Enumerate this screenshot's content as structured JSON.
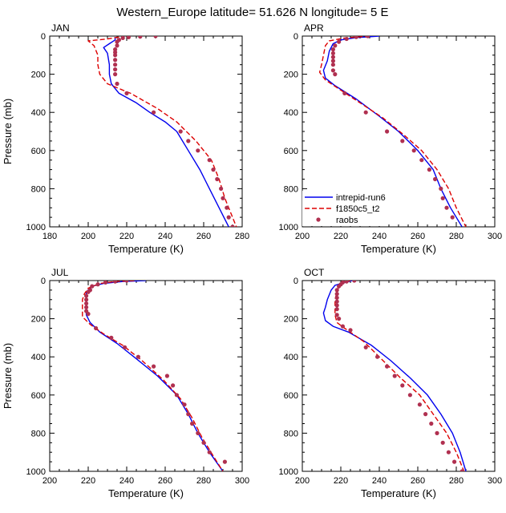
{
  "title": "Western_Europe  latitude= 51.626 N longitude= 5 E",
  "legend": {
    "entries": [
      {
        "name": "intrepid-run6",
        "color": "#0000ee",
        "style": "solid"
      },
      {
        "name": "f1850c5_t2",
        "color": "#dd0000",
        "style": "dashed"
      },
      {
        "name": "raobs",
        "color": "#b03050",
        "style": "dots"
      }
    ]
  },
  "chart_data": [
    {
      "type": "line",
      "panel": "JAN",
      "xlabel": "Temperature (K)",
      "ylabel": "Pressure (mb)",
      "xlim": [
        180,
        280
      ],
      "ylim": [
        1000,
        0
      ],
      "y_inverted": true,
      "xticks": [
        180,
        200,
        220,
        240,
        260,
        280
      ],
      "yticks": [
        0,
        200,
        400,
        600,
        800,
        1000
      ],
      "series": [
        {
          "name": "intrepid-run6",
          "points": [
            [
              214,
              5
            ],
            [
              214,
              20
            ],
            [
              211,
              40
            ],
            [
              208,
              60
            ],
            [
              210,
              90
            ],
            [
              211,
              150
            ],
            [
              211,
              200
            ],
            [
              212,
              250
            ],
            [
              216,
              300
            ],
            [
              225,
              350
            ],
            [
              232,
              400
            ],
            [
              240,
              450
            ],
            [
              246,
              500
            ],
            [
              252,
              600
            ],
            [
              258,
              700
            ],
            [
              263,
              800
            ],
            [
              268,
              900
            ],
            [
              273,
              1000
            ]
          ]
        },
        {
          "name": "f1850c5_t2",
          "points": [
            [
              216,
              5
            ],
            [
              210,
              15
            ],
            [
              200,
              25
            ],
            [
              203,
              50
            ],
            [
              205,
              100
            ],
            [
              205,
              150
            ],
            [
              206,
              200
            ],
            [
              210,
              250
            ],
            [
              222,
              300
            ],
            [
              236,
              380
            ],
            [
              246,
              450
            ],
            [
              256,
              550
            ],
            [
              264,
              650
            ],
            [
              268,
              750
            ],
            [
              271,
              850
            ],
            [
              275,
              950
            ],
            [
              277,
              1000
            ]
          ]
        },
        {
          "name": "raobs",
          "points": [
            [
              235,
              0
            ],
            [
              227,
              3
            ],
            [
              221,
              6
            ],
            [
              218,
              10
            ],
            [
              216,
              20
            ],
            [
              215,
              30
            ],
            [
              215,
              50
            ],
            [
              214,
              70
            ],
            [
              214,
              85
            ],
            [
              214,
              100
            ],
            [
              214,
              125
            ],
            [
              214,
              150
            ],
            [
              214,
              175
            ],
            [
              214,
              200
            ],
            [
              215,
              250
            ],
            [
              220,
              300
            ],
            [
              234,
              400
            ],
            [
              248,
              500
            ],
            [
              252,
              550
            ],
            [
              257,
              600
            ],
            [
              263,
              650
            ],
            [
              265,
              700
            ],
            [
              267,
              750
            ],
            [
              269,
              800
            ],
            [
              270,
              850
            ],
            [
              272,
              900
            ],
            [
              273,
              950
            ],
            [
              275,
              1000
            ]
          ]
        }
      ]
    },
    {
      "type": "line",
      "panel": "APR",
      "xlabel": "Temperature (K)",
      "ylabel": "",
      "xlim": [
        200,
        300
      ],
      "ylim": [
        1000,
        0
      ],
      "y_inverted": true,
      "xticks": [
        200,
        220,
        240,
        260,
        280,
        300
      ],
      "yticks": [
        0,
        200,
        400,
        600,
        800,
        1000
      ],
      "series": [
        {
          "name": "intrepid-run6",
          "points": [
            [
              240,
              0
            ],
            [
              228,
              8
            ],
            [
              220,
              20
            ],
            [
              216,
              40
            ],
            [
              214,
              80
            ],
            [
              213,
              130
            ],
            [
              211,
              180
            ],
            [
              212,
              220
            ],
            [
              217,
              260
            ],
            [
              228,
              330
            ],
            [
              240,
              420
            ],
            [
              250,
              500
            ],
            [
              260,
              600
            ],
            [
              268,
              700
            ],
            [
              272,
              800
            ],
            [
              277,
              900
            ],
            [
              283,
              1000
            ]
          ]
        },
        {
          "name": "f1850c5_t2",
          "points": [
            [
              235,
              0
            ],
            [
              222,
              10
            ],
            [
              214,
              25
            ],
            [
              212,
              50
            ],
            [
              211,
              100
            ],
            [
              210,
              150
            ],
            [
              209,
              190
            ],
            [
              212,
              230
            ],
            [
              218,
              270
            ],
            [
              230,
              350
            ],
            [
              242,
              430
            ],
            [
              253,
              520
            ],
            [
              262,
              600
            ],
            [
              270,
              700
            ],
            [
              276,
              800
            ],
            [
              280,
              900
            ],
            [
              285,
              1000
            ]
          ]
        },
        {
          "name": "raobs",
          "points": [
            [
              234,
              0
            ],
            [
              228,
              5
            ],
            [
              223,
              15
            ],
            [
              219,
              30
            ],
            [
              217,
              50
            ],
            [
              216,
              70
            ],
            [
              216,
              90
            ],
            [
              216,
              110
            ],
            [
              216,
              130
            ],
            [
              216,
              150
            ],
            [
              216,
              180
            ],
            [
              217,
              200
            ],
            [
              222,
              300
            ],
            [
              233,
              400
            ],
            [
              244,
              500
            ],
            [
              252,
              550
            ],
            [
              258,
              600
            ],
            [
              262,
              650
            ],
            [
              266,
              700
            ],
            [
              269,
              750
            ],
            [
              272,
              800
            ],
            [
              273,
              850
            ],
            [
              275,
              900
            ],
            [
              278,
              950
            ]
          ]
        }
      ]
    },
    {
      "type": "line",
      "panel": "JUL",
      "xlabel": "Temperature (K)",
      "ylabel": "Pressure (mb)",
      "xlim": [
        200,
        300
      ],
      "ylim": [
        1000,
        0
      ],
      "y_inverted": true,
      "xticks": [
        200,
        220,
        240,
        260,
        280,
        300
      ],
      "yticks": [
        0,
        200,
        400,
        600,
        800,
        1000
      ],
      "series": [
        {
          "name": "intrepid-run6",
          "points": [
            [
              250,
              0
            ],
            [
              238,
              5
            ],
            [
              228,
              15
            ],
            [
              222,
              30
            ],
            [
              219,
              60
            ],
            [
              219,
              100
            ],
            [
              219,
              140
            ],
            [
              219,
              180
            ],
            [
              221,
              220
            ],
            [
              226,
              270
            ],
            [
              235,
              330
            ],
            [
              245,
              410
            ],
            [
              256,
              500
            ],
            [
              266,
              600
            ],
            [
              272,
              700
            ],
            [
              277,
              800
            ],
            [
              283,
              900
            ],
            [
              290,
              1000
            ]
          ]
        },
        {
          "name": "f1850c5_t2",
          "points": [
            [
              244,
              0
            ],
            [
              234,
              5
            ],
            [
              226,
              15
            ],
            [
              220,
              40
            ],
            [
              218,
              70
            ],
            [
              217,
              100
            ],
            [
              217,
              140
            ],
            [
              217,
              190
            ],
            [
              221,
              230
            ],
            [
              228,
              280
            ],
            [
              238,
              340
            ],
            [
              248,
              420
            ],
            [
              259,
              520
            ],
            [
              268,
              620
            ],
            [
              274,
              720
            ],
            [
              279,
              820
            ],
            [
              285,
              920
            ],
            [
              290,
              1000
            ]
          ]
        },
        {
          "name": "raobs",
          "points": [
            [
              240,
              0
            ],
            [
              234,
              5
            ],
            [
              229,
              10
            ],
            [
              225,
              20
            ],
            [
              222,
              30
            ],
            [
              221,
              50
            ],
            [
              220,
              60
            ],
            [
              219,
              80
            ],
            [
              219,
              100
            ],
            [
              219,
              120
            ],
            [
              219,
              140
            ],
            [
              219,
              160
            ],
            [
              220,
              175
            ],
            [
              224,
              250
            ],
            [
              232,
              300
            ],
            [
              239,
              350
            ],
            [
              246,
              400
            ],
            [
              254,
              450
            ],
            [
              261,
              500
            ],
            [
              264,
              550
            ],
            [
              266,
              600
            ],
            [
              270,
              650
            ],
            [
              272,
              700
            ],
            [
              274,
              750
            ],
            [
              277,
              800
            ],
            [
              280,
              850
            ],
            [
              283,
              900
            ],
            [
              291,
              950
            ]
          ]
        }
      ]
    },
    {
      "type": "line",
      "panel": "OCT",
      "xlabel": "Temperature (K)",
      "ylabel": "",
      "xlim": [
        200,
        300
      ],
      "ylim": [
        1000,
        0
      ],
      "y_inverted": true,
      "xticks": [
        200,
        220,
        240,
        260,
        280,
        300
      ],
      "yticks": [
        0,
        200,
        400,
        600,
        800,
        1000
      ],
      "series": [
        {
          "name": "intrepid-run6",
          "points": [
            [
              226,
              0
            ],
            [
              222,
              10
            ],
            [
              217,
              25
            ],
            [
              215,
              50
            ],
            [
              213,
              100
            ],
            [
              212,
              140
            ],
            [
              211,
              170
            ],
            [
              212,
              210
            ],
            [
              216,
              240
            ],
            [
              224,
              270
            ],
            [
              236,
              340
            ],
            [
              246,
              420
            ],
            [
              256,
              510
            ],
            [
              265,
              600
            ],
            [
              272,
              700
            ],
            [
              278,
              800
            ],
            [
              282,
              900
            ],
            [
              285,
              1000
            ]
          ]
        },
        {
          "name": "f1850c5_t2",
          "points": [
            [
              225,
              0
            ],
            [
              221,
              10
            ],
            [
              219,
              30
            ],
            [
              218,
              60
            ],
            [
              217,
              100
            ],
            [
              217,
              140
            ],
            [
              217,
              180
            ],
            [
              218,
              220
            ],
            [
              222,
              250
            ],
            [
              232,
              320
            ],
            [
              242,
              420
            ],
            [
              251,
              510
            ],
            [
              261,
              600
            ],
            [
              268,
              700
            ],
            [
              275,
              800
            ],
            [
              280,
              900
            ],
            [
              284,
              1000
            ]
          ]
        },
        {
          "name": "raobs",
          "points": [
            [
              227,
              0
            ],
            [
              223,
              5
            ],
            [
              221,
              10
            ],
            [
              220,
              20
            ],
            [
              219,
              30
            ],
            [
              218,
              50
            ],
            [
              218,
              70
            ],
            [
              218,
              90
            ],
            [
              218,
              110
            ],
            [
              218,
              130
            ],
            [
              218,
              150
            ],
            [
              218,
              180
            ],
            [
              219,
              200
            ],
            [
              221,
              240
            ],
            [
              225,
              260
            ],
            [
              233,
              350
            ],
            [
              239,
              400
            ],
            [
              244,
              450
            ],
            [
              248,
              500
            ],
            [
              252,
              550
            ],
            [
              256,
              600
            ],
            [
              261,
              650
            ],
            [
              264,
              700
            ],
            [
              267,
              750
            ],
            [
              270,
              800
            ],
            [
              273,
              850
            ],
            [
              276,
              900
            ],
            [
              279,
              950
            ],
            [
              283,
              1000
            ]
          ]
        }
      ]
    }
  ]
}
